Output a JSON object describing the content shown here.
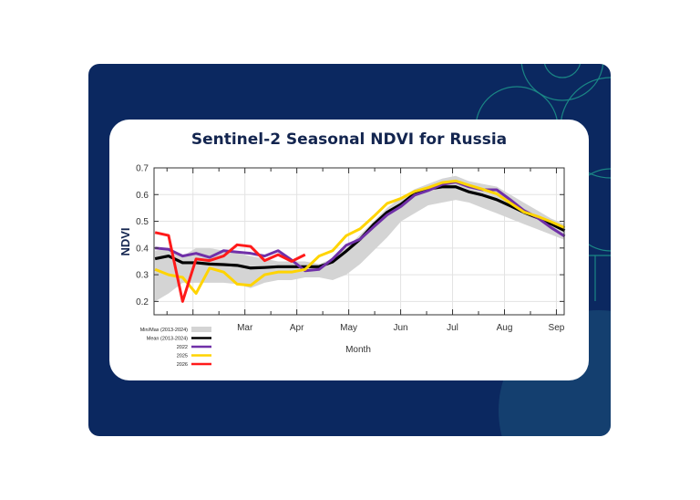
{
  "colors": {
    "background": "#0b2860",
    "accent": "#1f9e8f",
    "card": "#ffffff"
  },
  "chart_data": {
    "type": "line",
    "title": "Sentinel-2 Seasonal NDVI for Russia",
    "xlabel": "Month",
    "ylabel": "NDVI",
    "xlim": [
      1.25,
      9.15
    ],
    "ylim": [
      0.15,
      0.7
    ],
    "grid": true,
    "legend_placement": "bottom-left",
    "x_ticks": [
      {
        "label": "Mar",
        "value": 3
      },
      {
        "label": "Apr",
        "value": 4
      },
      {
        "label": "May",
        "value": 5
      },
      {
        "label": "Jun",
        "value": 6
      },
      {
        "label": "Jul",
        "value": 7
      },
      {
        "label": "Aug",
        "value": 8
      },
      {
        "label": "Sep",
        "value": 9
      }
    ],
    "y_ticks": [
      "0.2",
      "0.3",
      "0.4",
      "0.5",
      "0.6",
      "0.7"
    ],
    "x": [
      1.27,
      1.53,
      1.8,
      2.06,
      2.32,
      2.59,
      2.85,
      3.11,
      3.38,
      3.64,
      3.9,
      4.16,
      4.43,
      4.69,
      4.95,
      5.22,
      5.48,
      5.74,
      6.01,
      6.27,
      6.53,
      6.8,
      7.06,
      7.32,
      7.58,
      7.85,
      8.11,
      8.37,
      8.64,
      8.9,
      9.16
    ],
    "band": {
      "name": "Min/Max (2013-2024)",
      "color": "#d4d4d4",
      "min": [
        0.2,
        0.23,
        0.27,
        0.27,
        0.27,
        0.27,
        0.265,
        0.25,
        0.27,
        0.28,
        0.28,
        0.29,
        0.29,
        0.28,
        0.3,
        0.34,
        0.39,
        0.44,
        0.5,
        0.53,
        0.56,
        0.57,
        0.58,
        0.57,
        0.55,
        0.53,
        0.51,
        0.49,
        0.47,
        0.45,
        0.43
      ],
      "max": [
        0.39,
        0.4,
        0.37,
        0.4,
        0.4,
        0.39,
        0.38,
        0.37,
        0.36,
        0.35,
        0.35,
        0.35,
        0.34,
        0.36,
        0.4,
        0.45,
        0.5,
        0.55,
        0.59,
        0.62,
        0.64,
        0.66,
        0.67,
        0.65,
        0.64,
        0.63,
        0.6,
        0.57,
        0.54,
        0.51,
        0.49
      ]
    },
    "series": [
      {
        "name": "Mean (2013-2024)",
        "color": "#000000",
        "values": [
          0.36,
          0.37,
          0.345,
          0.345,
          0.34,
          0.338,
          0.335,
          0.325,
          0.327,
          0.33,
          0.33,
          0.33,
          0.33,
          0.348,
          0.388,
          0.433,
          0.488,
          0.534,
          0.564,
          0.604,
          0.621,
          0.629,
          0.629,
          0.61,
          0.598,
          0.581,
          0.558,
          0.534,
          0.513,
          0.49,
          0.465
        ]
      },
      {
        "name": "2022",
        "color": "#7030a8",
        "values": [
          0.4,
          0.395,
          0.37,
          0.38,
          0.365,
          0.39,
          0.385,
          0.38,
          0.37,
          0.39,
          0.355,
          0.315,
          0.32,
          0.359,
          0.41,
          0.433,
          0.479,
          0.524,
          0.556,
          0.598,
          0.615,
          0.638,
          0.647,
          0.629,
          0.618,
          0.618,
          0.581,
          0.541,
          0.513,
          0.476,
          0.444
        ]
      },
      {
        "name": "2025",
        "color": "#ffd400",
        "values": [
          0.32,
          0.3,
          0.29,
          0.23,
          0.325,
          0.31,
          0.265,
          0.26,
          0.3,
          0.31,
          0.31,
          0.32,
          0.37,
          0.39,
          0.446,
          0.472,
          0.518,
          0.567,
          0.586,
          0.612,
          0.626,
          0.645,
          0.651,
          0.635,
          0.62,
          0.603,
          0.569,
          0.535,
          0.518,
          0.498,
          0.476
        ]
      },
      {
        "name": "2026",
        "color": "#ff1a1a",
        "values": [
          0.458,
          0.447,
          0.2,
          0.359,
          0.353,
          0.37,
          0.412,
          0.406,
          0.353,
          0.375,
          0.35,
          0.375,
          null,
          null,
          null,
          null,
          null,
          null,
          null,
          null,
          null,
          null,
          null,
          null,
          null,
          null,
          null,
          null,
          null,
          null,
          null
        ]
      }
    ]
  }
}
